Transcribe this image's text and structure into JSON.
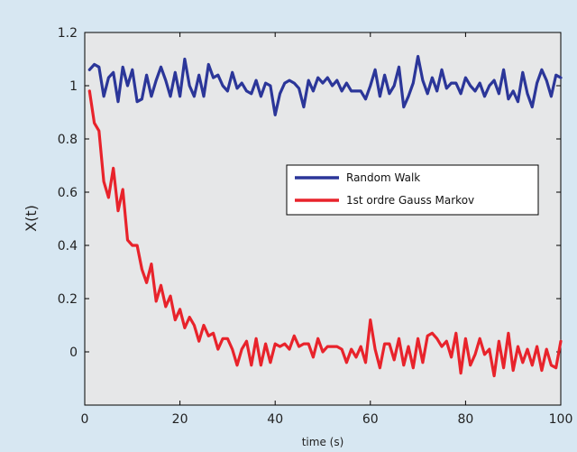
{
  "chart_data": {
    "type": "line",
    "title": "",
    "xlabel": "time (s)",
    "ylabel": "X(t)",
    "xlim": [
      0,
      100
    ],
    "ylim": [
      -0.2,
      1.2
    ],
    "x_ticks": [
      "0",
      "20",
      "40",
      "60",
      "80",
      "100"
    ],
    "y_ticks": [
      "0",
      "0.2",
      "0.4",
      "0.6",
      "0.8",
      "1",
      "1.2"
    ],
    "grid": false,
    "legend_position": "center-right",
    "x": [
      1,
      2,
      3,
      4,
      5,
      6,
      7,
      8,
      9,
      10,
      11,
      12,
      13,
      14,
      15,
      16,
      17,
      18,
      19,
      20,
      21,
      22,
      23,
      24,
      25,
      26,
      27,
      28,
      29,
      30,
      31,
      32,
      33,
      34,
      35,
      36,
      37,
      38,
      39,
      40,
      41,
      42,
      43,
      44,
      45,
      46,
      47,
      48,
      49,
      50,
      51,
      52,
      53,
      54,
      55,
      56,
      57,
      58,
      59,
      60,
      61,
      62,
      63,
      64,
      65,
      66,
      67,
      68,
      69,
      70,
      71,
      72,
      73,
      74,
      75,
      76,
      77,
      78,
      79,
      80,
      81,
      82,
      83,
      84,
      85,
      86,
      87,
      88,
      89,
      90,
      91,
      92,
      93,
      94,
      95,
      96,
      97,
      98,
      99,
      100
    ],
    "series": [
      {
        "name": "Random Walk",
        "color": "#2b3699",
        "values": [
          1.06,
          1.08,
          1.07,
          0.96,
          1.03,
          1.05,
          0.94,
          1.07,
          1.0,
          1.06,
          0.94,
          0.95,
          1.04,
          0.96,
          1.02,
          1.07,
          1.02,
          0.96,
          1.05,
          0.96,
          1.1,
          1.0,
          0.96,
          1.04,
          0.96,
          1.08,
          1.03,
          1.04,
          1.0,
          0.98,
          1.05,
          0.99,
          1.01,
          0.98,
          0.97,
          1.02,
          0.96,
          1.01,
          1.0,
          0.89,
          0.97,
          1.01,
          1.02,
          1.01,
          0.99,
          0.92,
          1.02,
          0.98,
          1.03,
          1.01,
          1.03,
          1.0,
          1.02,
          0.98,
          1.01,
          0.98,
          0.98,
          0.98,
          0.95,
          1.0,
          1.06,
          0.96,
          1.04,
          0.97,
          1.0,
          1.07,
          0.92,
          0.96,
          1.01,
          1.11,
          1.02,
          0.97,
          1.03,
          0.98,
          1.06,
          0.99,
          1.01,
          1.01,
          0.97,
          1.03,
          1.0,
          0.98,
          1.01,
          0.96,
          1.0,
          1.02,
          0.97,
          1.06,
          0.95,
          0.98,
          0.94,
          1.05,
          0.97,
          0.92,
          1.01,
          1.06,
          1.02,
          0.96,
          1.04,
          1.03
        ]
      },
      {
        "name": "1st ordre Gauss Markov",
        "color": "#e8232b",
        "values": [
          0.98,
          0.86,
          0.83,
          0.64,
          0.58,
          0.69,
          0.53,
          0.61,
          0.42,
          0.4,
          0.4,
          0.31,
          0.26,
          0.33,
          0.19,
          0.25,
          0.17,
          0.21,
          0.12,
          0.16,
          0.09,
          0.13,
          0.1,
          0.04,
          0.1,
          0.06,
          0.07,
          0.01,
          0.05,
          0.05,
          0.01,
          -0.05,
          0.01,
          0.04,
          -0.05,
          0.05,
          -0.05,
          0.03,
          -0.04,
          0.03,
          0.02,
          0.03,
          0.01,
          0.06,
          0.02,
          0.03,
          0.03,
          -0.02,
          0.05,
          0.0,
          0.02,
          0.02,
          0.02,
          0.01,
          -0.04,
          0.01,
          -0.02,
          0.02,
          -0.04,
          0.12,
          0.01,
          -0.06,
          0.03,
          0.03,
          -0.03,
          0.05,
          -0.05,
          0.02,
          -0.06,
          0.05,
          -0.04,
          0.06,
          0.07,
          0.05,
          0.02,
          0.04,
          -0.02,
          0.07,
          -0.08,
          0.05,
          -0.05,
          -0.01,
          0.05,
          -0.01,
          0.01,
          -0.09,
          0.04,
          -0.06,
          0.07,
          -0.07,
          0.02,
          -0.04,
          0.01,
          -0.05,
          0.02,
          -0.07,
          0.01,
          -0.05,
          -0.06,
          0.04
        ]
      }
    ]
  }
}
